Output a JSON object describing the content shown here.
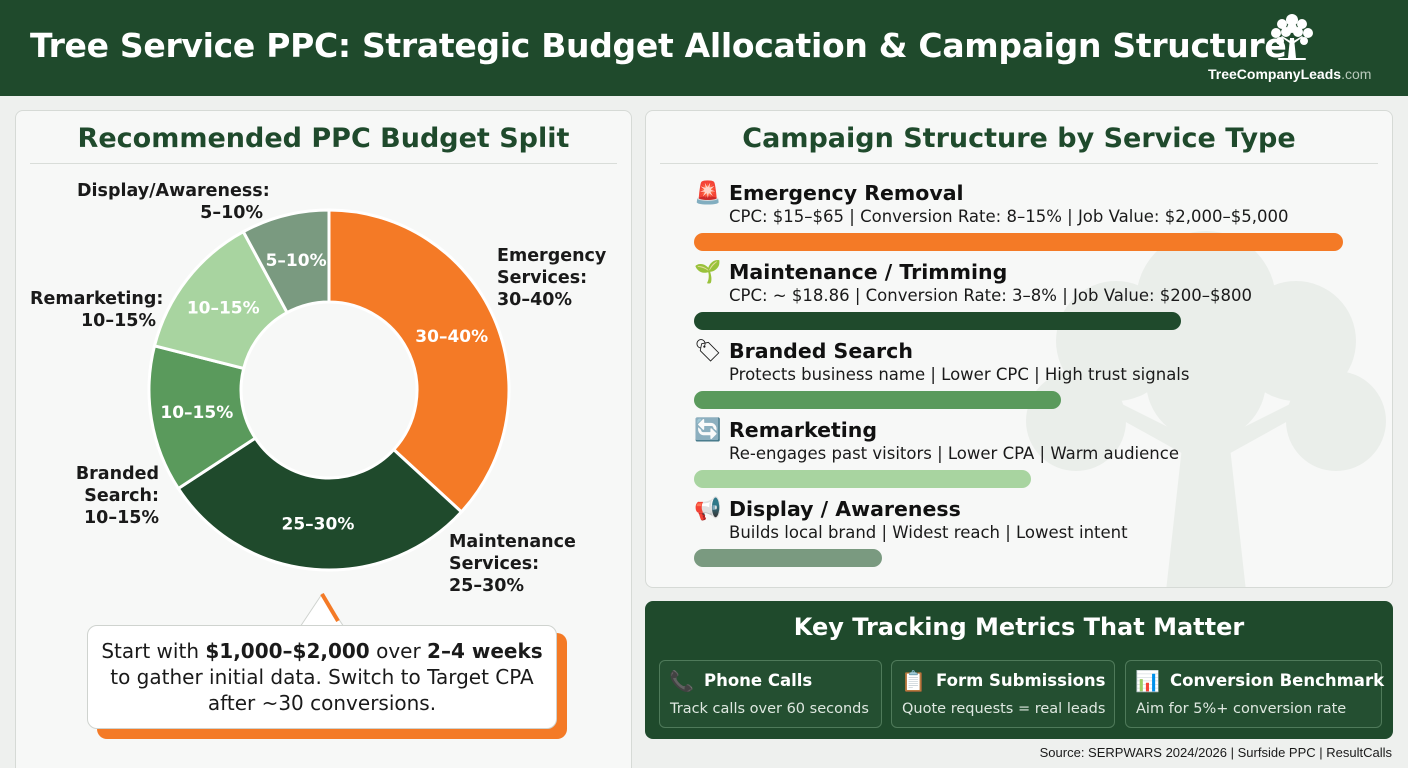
{
  "header": {
    "title": "Tree Service PPC: Strategic Budget Allocation & Campaign Structure",
    "logo_name": "TreeCompanyLeads",
    "logo_domain": ".com"
  },
  "chart_data": {
    "type": "pie",
    "title": "Recommended PPC Budget Split",
    "slices": [
      {
        "name": "Emergency Services",
        "label": "30–40%",
        "ext_label": [
          "Emergency",
          "Services:",
          "30–40%"
        ],
        "low": 30,
        "high": 40,
        "color": "#f47a26"
      },
      {
        "name": "Maintenance Services",
        "label": "25–30%",
        "ext_label": [
          "Maintenance",
          "Services:",
          "25–30%"
        ],
        "low": 25,
        "high": 30,
        "color": "#1f4a2c"
      },
      {
        "name": "Branded Search",
        "label": "10–15%",
        "ext_label": [
          "Branded",
          "Search:",
          "10–15%"
        ],
        "low": 10,
        "high": 15,
        "color": "#5a9a5c"
      },
      {
        "name": "Remarketing",
        "label": "10–15%",
        "ext_label": [
          "Remarketing:",
          "10–15%"
        ],
        "low": 10,
        "high": 15,
        "color": "#a8d4a0"
      },
      {
        "name": "Display/Awareness",
        "label": "5–10%",
        "ext_label": [
          "Display/Awareness:",
          "5–10%"
        ],
        "low": 5,
        "high": 10,
        "color": "#7a9a80"
      }
    ]
  },
  "callout": {
    "line1_pre": "Start with ",
    "line1_amount": "$1,000–$2,000",
    "line1_mid": " over ",
    "line1_weeks": "2–4 weeks",
    "line2": "to gather initial data. Switch to Target CPA",
    "line3": "after ~30 conversions."
  },
  "campaigns": {
    "title": "Campaign Structure by Service Type",
    "items": [
      {
        "icon": "siren-icon",
        "glyph": "🚨",
        "title": "Emergency Removal",
        "desc": "CPC: $15–$65 | Conversion Rate: 8–15% | Job Value: $2,000–$5,000",
        "bar_fraction": 1.0,
        "bar_color": "#f47a26"
      },
      {
        "icon": "seedling-icon",
        "glyph": "🌱",
        "title": "Maintenance / Trimming",
        "desc": "CPC: ~ $18.86 | Conversion Rate: 3–8% | Job Value: $200–$800",
        "bar_fraction": 0.75,
        "bar_color": "#1f4a2c"
      },
      {
        "icon": "tag-icon",
        "glyph": "🏷",
        "title": "Branded Search",
        "desc": "Protects business name | Lower CPC | High trust signals",
        "bar_fraction": 0.565,
        "bar_color": "#5a9a5c"
      },
      {
        "icon": "refresh-icon",
        "glyph": "🔄",
        "title": "Remarketing",
        "desc": "Re-engages past visitors | Lower CPA | Warm audience",
        "bar_fraction": 0.52,
        "bar_color": "#a8d4a0"
      },
      {
        "icon": "megaphone-icon",
        "glyph": "📢",
        "title": "Display / Awareness",
        "desc": "Builds local brand | Widest reach | Lowest intent",
        "bar_fraction": 0.29,
        "bar_color": "#7a9a80"
      }
    ]
  },
  "metrics": {
    "title": "Key Tracking Metrics That Matter",
    "items": [
      {
        "icon": "phone-icon",
        "glyph": "📞",
        "title": "Phone Calls",
        "desc": "Track calls over 60 seconds"
      },
      {
        "icon": "clipboard-icon",
        "glyph": "📋",
        "title": "Form Submissions",
        "desc": "Quote requests = real leads"
      },
      {
        "icon": "bar-chart-icon",
        "glyph": "📊",
        "title": "Conversion Benchmark",
        "desc": "Aim for 5%+ conversion rate"
      }
    ]
  },
  "source": "Source: SERPWARS 2024/2026 | Surfside PPC | ResultCalls"
}
